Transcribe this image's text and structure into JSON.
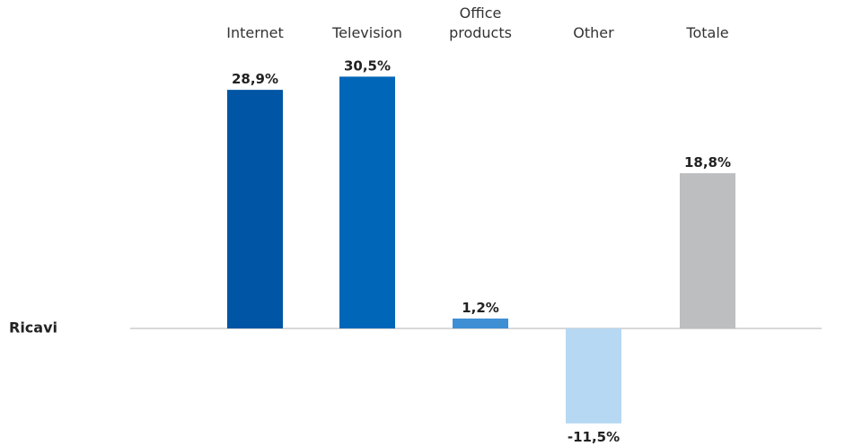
{
  "chart_data": {
    "type": "bar",
    "row_label": "Ricavi",
    "categories": [
      "Internet",
      "Television",
      "Office products",
      "Other",
      "Totale"
    ],
    "category_lines": [
      [
        "Internet"
      ],
      [
        "Television"
      ],
      [
        "Office",
        "products"
      ],
      [
        "Other"
      ],
      [
        "Totale"
      ]
    ],
    "values": [
      28.9,
      30.5,
      1.2,
      -11.5,
      18.8
    ],
    "value_labels": [
      "28,9%",
      "30,5%",
      "1,2%",
      "-11,5%",
      "18,8%"
    ],
    "colors": [
      "#0055a5",
      "#0066b8",
      "#3e8fd4",
      "#b6d8f2",
      "#bcbec0"
    ],
    "baseline_color": "#b0b0b0",
    "ylim": [
      -12,
      32
    ],
    "grid": false,
    "legend": "none"
  }
}
